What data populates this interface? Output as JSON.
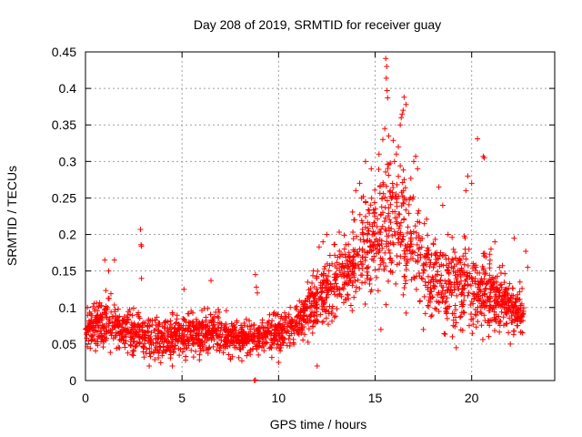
{
  "chart_data": {
    "type": "scatter",
    "title": "Day 208 of 2019, SRMTID for receiver guay",
    "xlabel": "GPS time / hours",
    "ylabel": "SRMTID / TECUs",
    "xlim": [
      0,
      24.3
    ],
    "ylim": [
      0,
      0.45
    ],
    "x_ticks": [
      0,
      5,
      10,
      15,
      20
    ],
    "y_ticks": [
      0,
      0.05,
      0.1,
      0.15,
      0.2,
      0.25,
      0.3,
      0.35,
      0.4,
      0.45
    ],
    "x_tick_labels": [
      "0",
      "5",
      "10",
      "15",
      "20"
    ],
    "y_tick_labels": [
      "0",
      "0.05",
      "0.1",
      "0.15",
      "0.2",
      "0.25",
      "0.3",
      "0.35",
      "0.4",
      "0.45"
    ],
    "grid": true,
    "marker": "plus",
    "series_color": "#ff0000",
    "trend": {
      "description": "estimated envelope of point cloud (center, spread) vs hour",
      "x": [
        0,
        1,
        2,
        3,
        4,
        5,
        6,
        7,
        8,
        9,
        10,
        11,
        12,
        13,
        14,
        15,
        16,
        17,
        18,
        19,
        20,
        21,
        22,
        22.7
      ],
      "center": [
        0.07,
        0.08,
        0.07,
        0.06,
        0.06,
        0.06,
        0.065,
        0.065,
        0.055,
        0.06,
        0.065,
        0.08,
        0.11,
        0.14,
        0.17,
        0.2,
        0.22,
        0.18,
        0.14,
        0.13,
        0.13,
        0.12,
        0.1,
        0.09
      ],
      "spread": [
        0.025,
        0.035,
        0.03,
        0.03,
        0.03,
        0.03,
        0.03,
        0.03,
        0.025,
        0.025,
        0.03,
        0.03,
        0.04,
        0.05,
        0.06,
        0.08,
        0.09,
        0.07,
        0.06,
        0.06,
        0.06,
        0.05,
        0.035,
        0.03
      ]
    },
    "points": [
      [
        2.85,
        0.207
      ],
      [
        2.88,
        0.186
      ],
      [
        2.9,
        0.184
      ],
      [
        15.55,
        0.441
      ],
      [
        15.6,
        0.43
      ],
      [
        15.58,
        0.414
      ],
      [
        15.62,
        0.397
      ],
      [
        15.65,
        0.387
      ],
      [
        16.5,
        0.388
      ],
      [
        16.45,
        0.37
      ],
      [
        16.4,
        0.365
      ],
      [
        16.35,
        0.36
      ],
      [
        16.3,
        0.35
      ],
      [
        16.6,
        0.378
      ],
      [
        15.5,
        0.345
      ],
      [
        15.4,
        0.33
      ],
      [
        15.7,
        0.335
      ],
      [
        16.0,
        0.3
      ],
      [
        16.1,
        0.31
      ],
      [
        16.2,
        0.32
      ],
      [
        17.1,
        0.307
      ],
      [
        17.0,
        0.3
      ],
      [
        17.2,
        0.29
      ],
      [
        20.3,
        0.331
      ],
      [
        20.6,
        0.307
      ],
      [
        20.65,
        0.305
      ],
      [
        19.8,
        0.28
      ],
      [
        19.7,
        0.26
      ],
      [
        20.0,
        0.27
      ],
      [
        18.3,
        0.265
      ],
      [
        18.5,
        0.24
      ],
      [
        14.0,
        0.26
      ],
      [
        14.2,
        0.27
      ],
      [
        14.5,
        0.3
      ],
      [
        14.8,
        0.29
      ],
      [
        15.2,
        0.31
      ],
      [
        14.3,
        0.25
      ],
      [
        13.9,
        0.22
      ],
      [
        12.1,
        0.183
      ],
      [
        12.3,
        0.19
      ],
      [
        12.5,
        0.2
      ],
      [
        11.8,
        0.15
      ],
      [
        8.8,
        0.145
      ],
      [
        8.85,
        0.128
      ],
      [
        8.9,
        0.12
      ],
      [
        1.0,
        0.165
      ],
      [
        1.5,
        0.165
      ],
      [
        1.2,
        0.15
      ],
      [
        2.9,
        0.14
      ],
      [
        5.1,
        0.125
      ],
      [
        6.5,
        0.137
      ],
      [
        22.8,
        0.177
      ],
      [
        22.9,
        0.155
      ],
      [
        22.5,
        0.135
      ],
      [
        22.2,
        0.195
      ],
      [
        21.0,
        0.18
      ],
      [
        21.2,
        0.19
      ],
      [
        12.0,
        0.02
      ],
      [
        8.8,
        0.001
      ],
      [
        8.75,
        0.0
      ],
      [
        15.3,
        0.07
      ],
      [
        17.5,
        0.07
      ],
      [
        19.0,
        0.06
      ],
      [
        19.2,
        0.045
      ],
      [
        22.0,
        0.05
      ],
      [
        3.3,
        0.02
      ],
      [
        4.5,
        0.02
      ],
      [
        7.5,
        0.03
      ],
      [
        10.0,
        0.025
      ],
      [
        0.1,
        0.1
      ]
    ]
  }
}
